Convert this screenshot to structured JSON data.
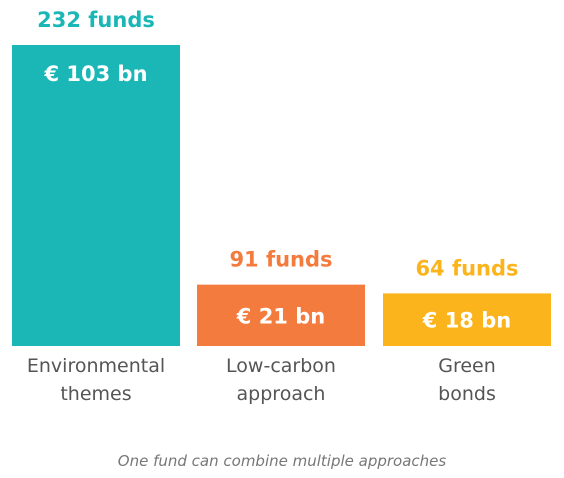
{
  "chart_data": {
    "type": "bar",
    "categories": [
      [
        "Environmental",
        "themes"
      ],
      [
        "Low-carbon",
        "approach"
      ],
      [
        "Green",
        "bonds"
      ]
    ],
    "values": [
      103,
      21,
      18
    ],
    "value_labels": [
      "€ 103 bn",
      "€ 21 bn",
      "€ 18 bn"
    ],
    "fund_labels": [
      "232 funds",
      "91 funds",
      "64 funds"
    ],
    "colors": [
      "#1bb7b7",
      "#f47b3e",
      "#fbb41c"
    ],
    "unit": "€ bn",
    "ylim": [
      0,
      103
    ],
    "grid": false
  },
  "footnote": "One fund can combine multiple approaches"
}
